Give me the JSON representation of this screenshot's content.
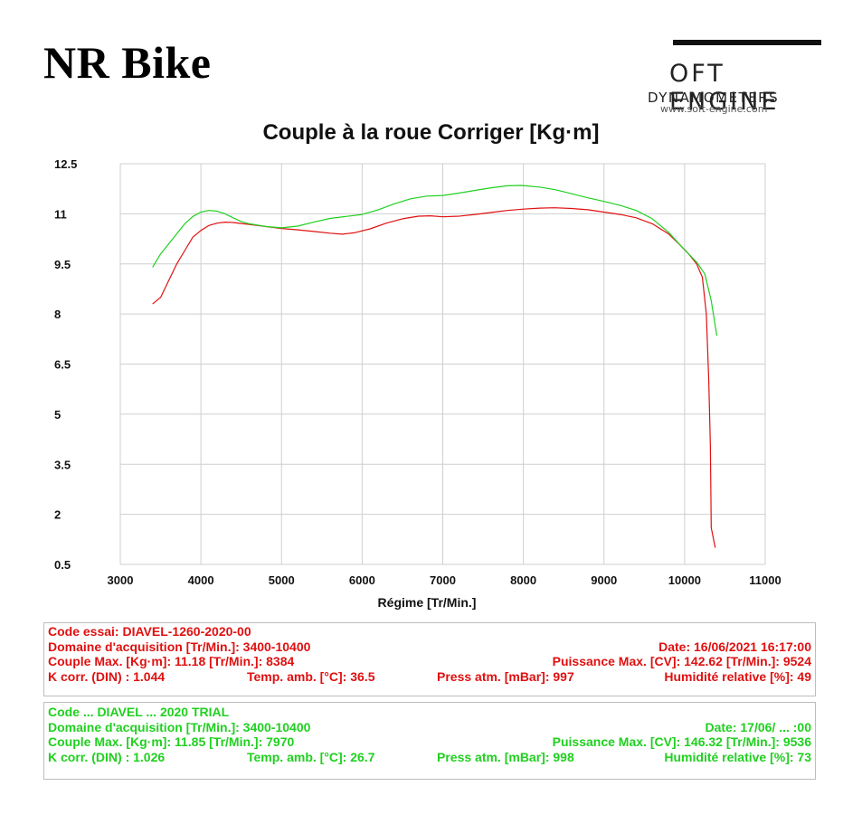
{
  "header": {
    "title": "NR Bike"
  },
  "logo": {
    "main": "OFT ENGINE",
    "sub": "DYNAMOMETERS",
    "url": "www.soft-engine.com"
  },
  "chart_data": {
    "type": "line",
    "title": "Couple à la roue Corriger [Kg·m]",
    "xlabel": "Régime [Tr/Min.]",
    "ylabel": "",
    "xlim": [
      3000,
      11000
    ],
    "ylim": [
      0.5,
      12.5
    ],
    "xticks": [
      "3000",
      "4000",
      "5000",
      "6000",
      "7000",
      "8000",
      "9000",
      "10000",
      "11000"
    ],
    "yticks": [
      "12.5",
      "11",
      "9.5",
      "8",
      "6.5",
      "5",
      "3.5",
      "2",
      "0.5"
    ],
    "grid": true,
    "series": [
      {
        "color": "#e01010",
        "points": [
          [
            3400,
            8.3
          ],
          [
            3500,
            8.5
          ],
          [
            3600,
            9.0
          ],
          [
            3700,
            9.5
          ],
          [
            3800,
            9.9
          ],
          [
            3900,
            10.3
          ],
          [
            4000,
            10.5
          ],
          [
            4100,
            10.65
          ],
          [
            4200,
            10.72
          ],
          [
            4300,
            10.75
          ],
          [
            4400,
            10.74
          ],
          [
            4500,
            10.71
          ],
          [
            4600,
            10.68
          ],
          [
            4800,
            10.62
          ],
          [
            5000,
            10.56
          ],
          [
            5200,
            10.52
          ],
          [
            5400,
            10.47
          ],
          [
            5600,
            10.42
          ],
          [
            5750,
            10.39
          ],
          [
            5900,
            10.43
          ],
          [
            6100,
            10.55
          ],
          [
            6300,
            10.72
          ],
          [
            6500,
            10.85
          ],
          [
            6700,
            10.93
          ],
          [
            6850,
            10.94
          ],
          [
            7000,
            10.91
          ],
          [
            7200,
            10.93
          ],
          [
            7400,
            10.98
          ],
          [
            7600,
            11.04
          ],
          [
            7800,
            11.1
          ],
          [
            8000,
            11.14
          ],
          [
            8200,
            11.17
          ],
          [
            8384,
            11.18
          ],
          [
            8600,
            11.16
          ],
          [
            8800,
            11.12
          ],
          [
            9000,
            11.05
          ],
          [
            9200,
            10.98
          ],
          [
            9400,
            10.88
          ],
          [
            9600,
            10.7
          ],
          [
            9800,
            10.4
          ],
          [
            9950,
            10.05
          ],
          [
            10050,
            9.8
          ],
          [
            10150,
            9.5
          ],
          [
            10220,
            9.1
          ],
          [
            10270,
            8.0
          ],
          [
            10300,
            6.0
          ],
          [
            10320,
            4.0
          ],
          [
            10330,
            1.6
          ],
          [
            10380,
            1.0
          ]
        ]
      },
      {
        "color": "#20d020",
        "points": [
          [
            3400,
            9.4
          ],
          [
            3500,
            9.8
          ],
          [
            3600,
            10.1
          ],
          [
            3700,
            10.4
          ],
          [
            3800,
            10.7
          ],
          [
            3900,
            10.92
          ],
          [
            4000,
            11.05
          ],
          [
            4100,
            11.1
          ],
          [
            4200,
            11.08
          ],
          [
            4300,
            11.0
          ],
          [
            4400,
            10.88
          ],
          [
            4500,
            10.77
          ],
          [
            4600,
            10.7
          ],
          [
            4800,
            10.62
          ],
          [
            5000,
            10.58
          ],
          [
            5200,
            10.63
          ],
          [
            5400,
            10.75
          ],
          [
            5600,
            10.86
          ],
          [
            5800,
            10.92
          ],
          [
            6000,
            10.98
          ],
          [
            6200,
            11.12
          ],
          [
            6400,
            11.3
          ],
          [
            6600,
            11.45
          ],
          [
            6800,
            11.53
          ],
          [
            7000,
            11.55
          ],
          [
            7200,
            11.62
          ],
          [
            7400,
            11.7
          ],
          [
            7600,
            11.78
          ],
          [
            7800,
            11.84
          ],
          [
            7970,
            11.85
          ],
          [
            8200,
            11.8
          ],
          [
            8400,
            11.72
          ],
          [
            8600,
            11.6
          ],
          [
            8800,
            11.48
          ],
          [
            9000,
            11.37
          ],
          [
            9200,
            11.25
          ],
          [
            9400,
            11.1
          ],
          [
            9600,
            10.85
          ],
          [
            9800,
            10.45
          ],
          [
            9950,
            10.05
          ],
          [
            10050,
            9.8
          ],
          [
            10150,
            9.55
          ],
          [
            10250,
            9.2
          ],
          [
            10330,
            8.4
          ],
          [
            10400,
            7.35
          ]
        ]
      }
    ]
  },
  "info_red": {
    "row1": {
      "c1": "Code essai: DIAVEL-1260-2020-00"
    },
    "row2": {
      "c1": "Domaine d'acquisition [Tr/Min.]: 3400-10400",
      "c4": "Date: 16/06/2021  16:17:00"
    },
    "row3": {
      "c1": "Couple Max. [Kg·m]: 11.18  [Tr/Min.]: 8384",
      "c4": "Puissance Max. [CV]: 142.62  [Tr/Min.]: 9524"
    },
    "row4": {
      "c1": "K corr. (DIN) : 1.044",
      "c2": "Temp. amb. [°C]: 36.5",
      "c3": "Press atm. [mBar]: 997",
      "c4": "Humidité relative [%]: 49"
    }
  },
  "info_green": {
    "row1": {
      "c1": "Code ... DIAVEL ... 2020 TRIAL"
    },
    "row2": {
      "c1": "Domaine d'acquisition [Tr/Min.]: 3400-10400",
      "c4": "Date: 17/06/ ... :00"
    },
    "row3": {
      "c1": "Couple Max. [Kg·m]: 11.85  [Tr/Min.]: 7970",
      "c4": "Puissance Max. [CV]: 146.32  [Tr/Min.]: 9536"
    },
    "row4": {
      "c1": "K corr. (DIN) : 1.026",
      "c2": "Temp. amb. [°C]: 26.7",
      "c3": "Press atm. [mBar]: 998",
      "c4": "Humidité relative [%]: 73"
    }
  }
}
